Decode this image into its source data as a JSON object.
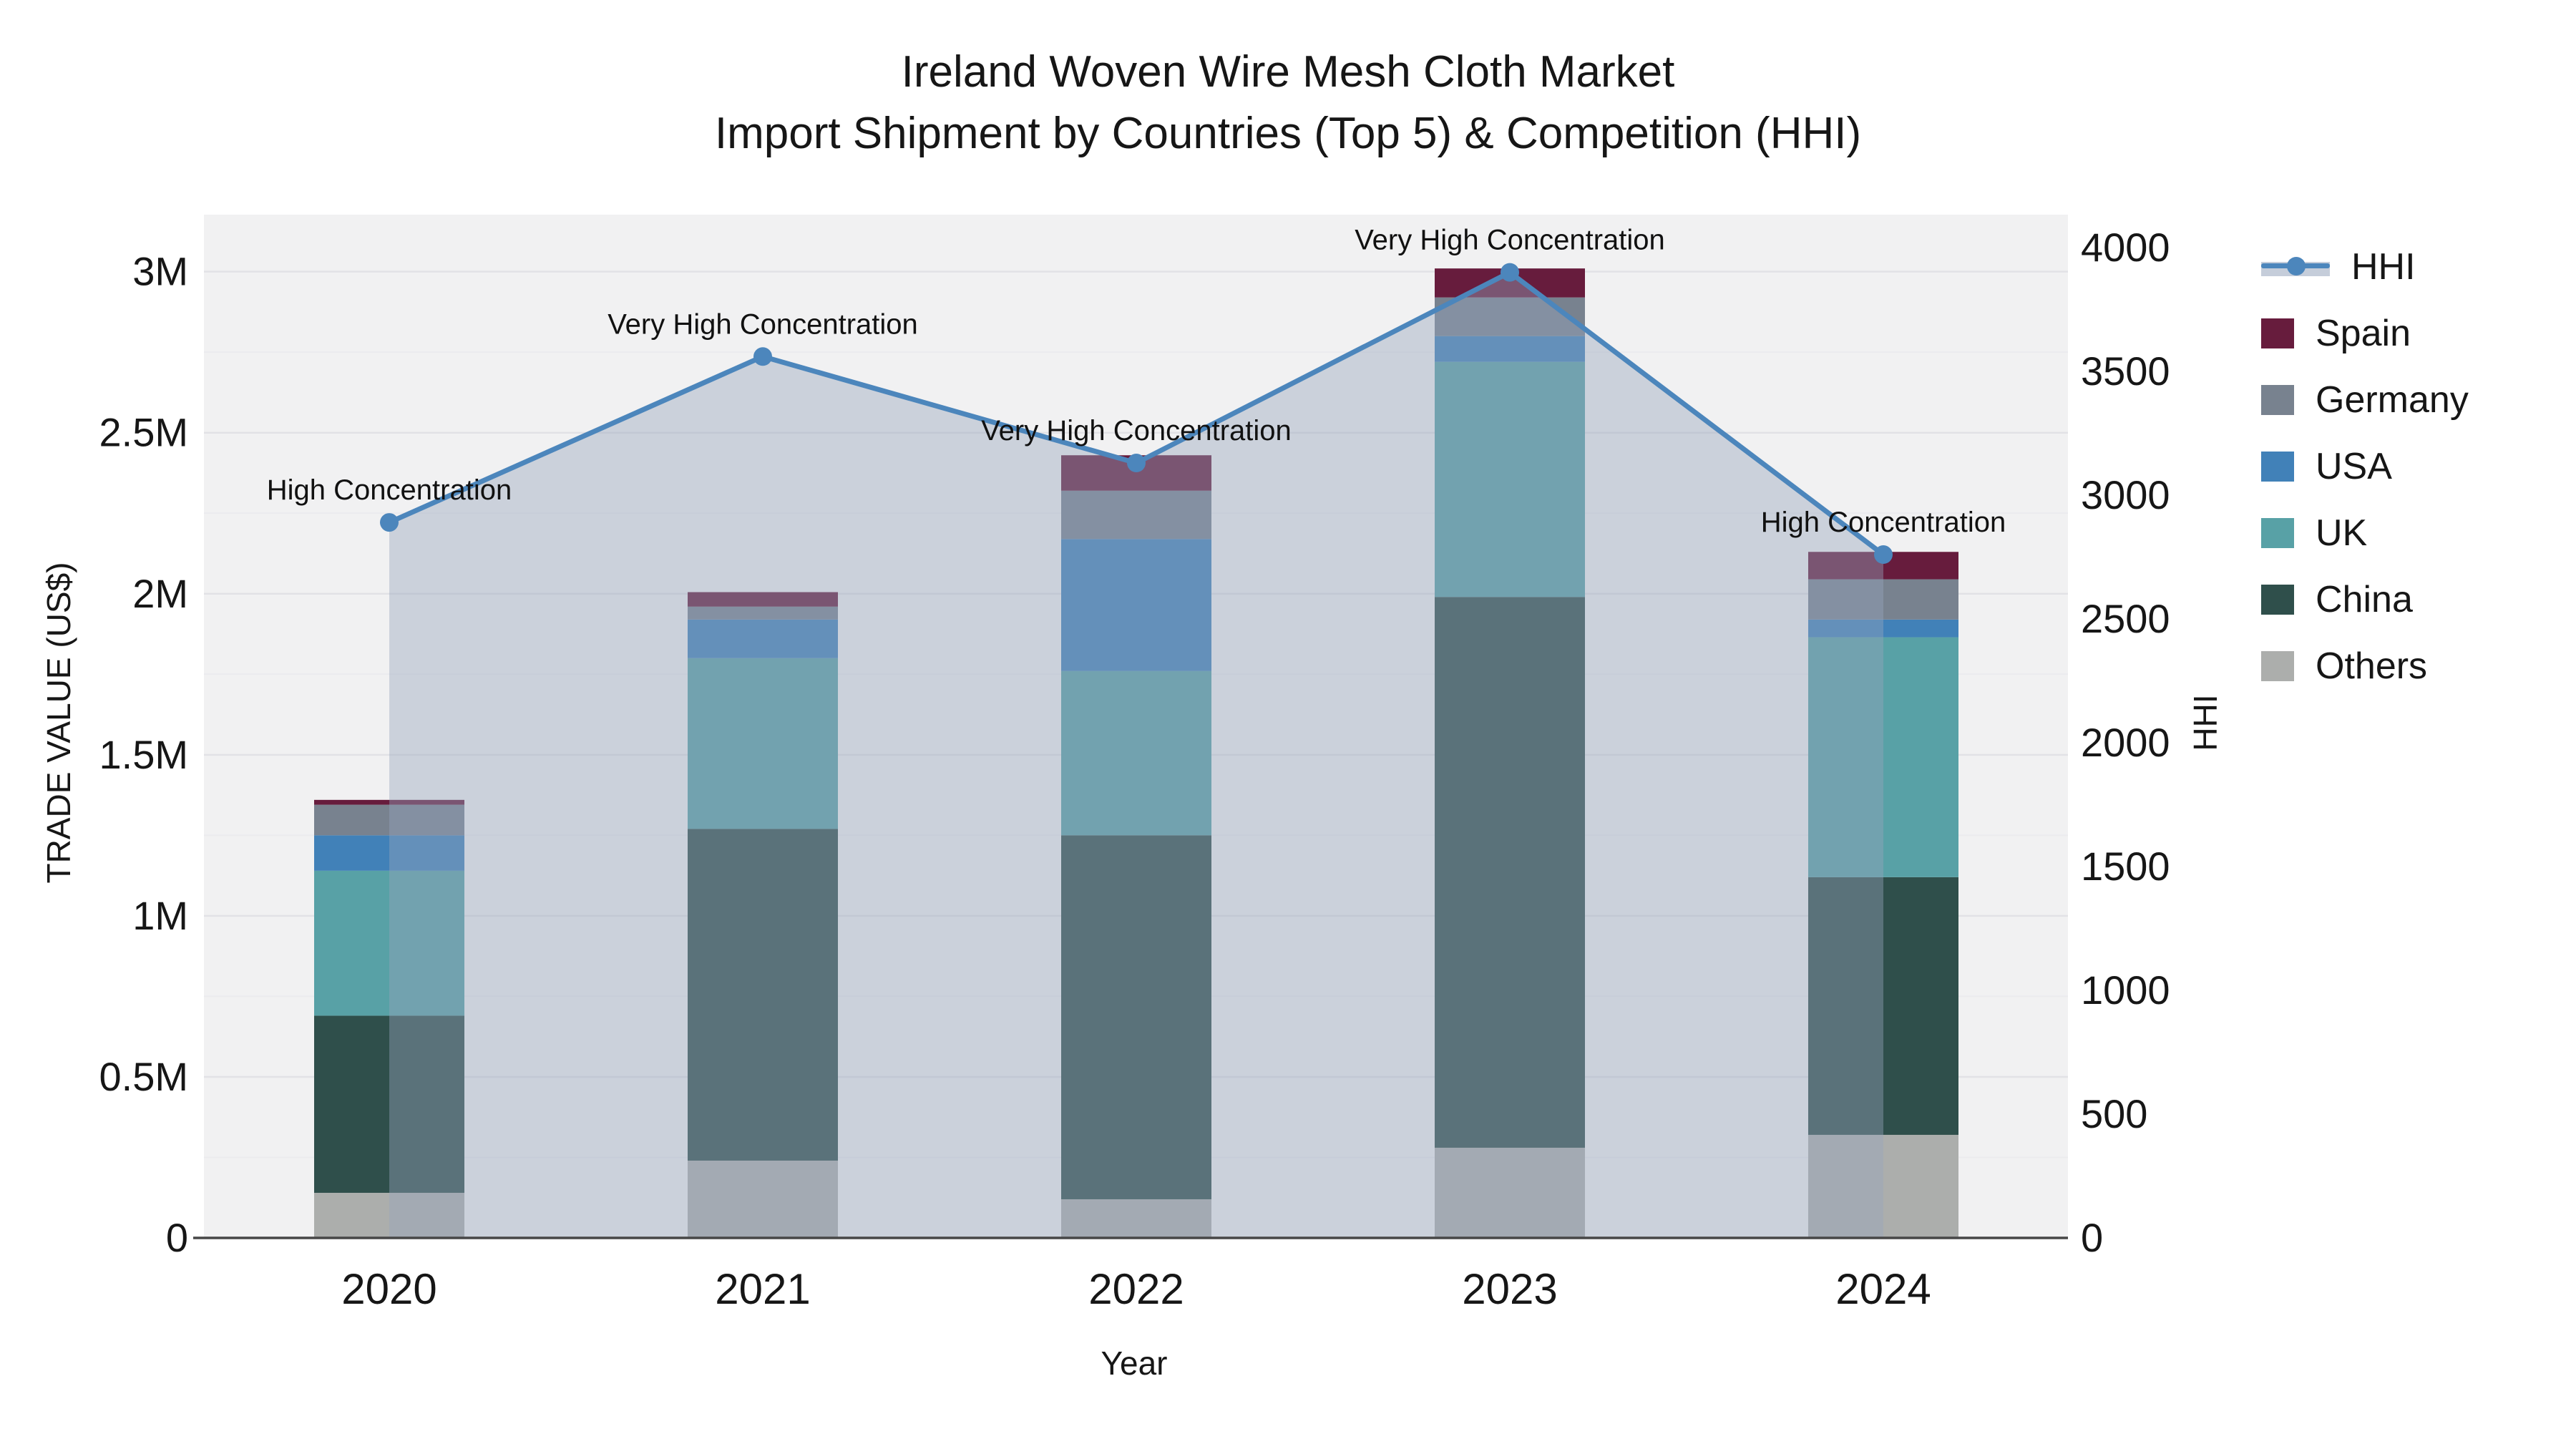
{
  "title": {
    "line1": "Ireland Woven Wire Mesh Cloth Market",
    "line2": "Import Shipment by Countries (Top 5) & Competition (HHI)"
  },
  "axes": {
    "x": {
      "title": "Year",
      "ticks": [
        "2020",
        "2021",
        "2022",
        "2023",
        "2024"
      ]
    },
    "y_left": {
      "title": "TRADE VALUE (US$)",
      "ticks": [
        {
          "value": 0,
          "label": "0"
        },
        {
          "value": 500000,
          "label": "0.5M"
        },
        {
          "value": 1000000,
          "label": "1M"
        },
        {
          "value": 1500000,
          "label": "1.5M"
        },
        {
          "value": 2000000,
          "label": "2M"
        },
        {
          "value": 2500000,
          "label": "2.5M"
        },
        {
          "value": 3000000,
          "label": "3M"
        }
      ]
    },
    "y_right": {
      "title": "HHI",
      "ticks": [
        {
          "value": 0,
          "label": "0"
        },
        {
          "value": 500,
          "label": "500"
        },
        {
          "value": 1000,
          "label": "1000"
        },
        {
          "value": 1500,
          "label": "1500"
        },
        {
          "value": 2000,
          "label": "2000"
        },
        {
          "value": 2500,
          "label": "2500"
        },
        {
          "value": 3000,
          "label": "3000"
        },
        {
          "value": 3500,
          "label": "3500"
        },
        {
          "value": 4000,
          "label": "4000"
        }
      ]
    }
  },
  "legend": {
    "items": [
      {
        "label": "HHI",
        "type": "line",
        "color": "#4C86BC"
      },
      {
        "label": "Spain",
        "type": "swatch",
        "color": "#671C3D"
      },
      {
        "label": "Germany",
        "type": "swatch",
        "color": "#78828F"
      },
      {
        "label": "USA",
        "type": "swatch",
        "color": "#4181B8"
      },
      {
        "label": "UK",
        "type": "swatch",
        "color": "#58A1A6"
      },
      {
        "label": "China",
        "type": "swatch",
        "color": "#2F4F4B"
      },
      {
        "label": "Others",
        "type": "swatch",
        "color": "#ACAEAC"
      }
    ]
  },
  "chart_data": {
    "type": "combo_stacked_bar_line",
    "title": "Ireland Woven Wire Mesh Cloth Market — Import Shipment by Countries (Top 5) & Competition (HHI)",
    "categories": [
      "2020",
      "2021",
      "2022",
      "2023",
      "2024"
    ],
    "xlabel": "Year",
    "ylabel_left": "TRADE VALUE (US$)",
    "ylabel_right": "HHI",
    "bar_unit": "US$",
    "stack_order_bottom_to_top": [
      "Others",
      "China",
      "UK",
      "USA",
      "Germany",
      "Spain"
    ],
    "series": [
      {
        "name": "Others",
        "color": "#ACAEAC",
        "values": [
          140000,
          240000,
          120000,
          280000,
          320000
        ]
      },
      {
        "name": "China",
        "color": "#2F4F4B",
        "values": [
          550000,
          1030000,
          1130000,
          1710000,
          800000
        ]
      },
      {
        "name": "UK",
        "color": "#58A1A6",
        "values": [
          450000,
          530000,
          510000,
          730000,
          745000
        ]
      },
      {
        "name": "USA",
        "color": "#4181B8",
        "values": [
          110000,
          120000,
          410000,
          80000,
          55000
        ]
      },
      {
        "name": "Germany",
        "color": "#78828F",
        "values": [
          95000,
          40000,
          150000,
          120000,
          125000
        ]
      },
      {
        "name": "Spain",
        "color": "#671C3D",
        "values": [
          15000,
          45000,
          110000,
          90000,
          85000
        ]
      }
    ],
    "bar_totals": [
      1360000,
      2005000,
      2430000,
      3010000,
      2130000
    ],
    "line_series": {
      "name": "HHI",
      "color": "#4C86BC",
      "area_fill": "rgba(150,164,188,0.42)",
      "values": [
        2890,
        3560,
        3130,
        3900,
        2760
      ]
    },
    "annotations": [
      "High Concentration",
      "Very High Concentration",
      "Very High Concentration",
      "Very High Concentration",
      "High Concentration"
    ],
    "y_left_range": [
      0,
      3177000
    ],
    "y_right_range": [
      0,
      4133
    ],
    "grid": true,
    "legend_position": "right"
  },
  "colors": {
    "page_bg": "#FFFFFF",
    "plot_bg": "#F1F1F2",
    "grid_major": "#E2E2E6",
    "grid_minor": "#EBEBEE",
    "axis_line": "#474747",
    "text": "#161616"
  }
}
